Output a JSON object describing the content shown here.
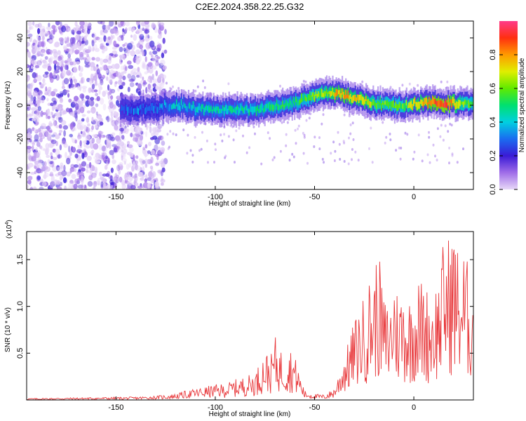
{
  "title": "C2E2.2024.358.22.25.G32",
  "chart_data": [
    {
      "type": "heatmap",
      "xlabel": "Height of straight line (km)",
      "ylabel": "Frequency (Hz)",
      "xlim": [
        -195,
        30
      ],
      "ylim": [
        -50,
        50
      ],
      "x_ticks": [
        -150,
        -100,
        -50,
        0
      ],
      "y_ticks": [
        -40,
        -20,
        0,
        20,
        40
      ],
      "x_tick_labels": [
        "-150",
        "-100",
        "-50",
        "0"
      ],
      "y_tick_labels": [
        "-40",
        "-20",
        "0",
        "20",
        "40"
      ],
      "colorbar": {
        "label": "Normalized spectral amplitude",
        "range": [
          0,
          1
        ],
        "ticks": [
          0.0,
          0.2,
          0.4,
          0.6,
          0.8
        ],
        "tick_labels": [
          "0.0",
          "0.2",
          "0.4",
          "0.6",
          "0.8"
        ]
      },
      "ridge": {
        "name": "",
        "x": [
          -148,
          -140,
          -130,
          -125,
          -120,
          -110,
          -100,
          -90,
          -80,
          -70,
          -60,
          -50,
          -45,
          -40,
          -35,
          -30,
          -25,
          -20,
          -15,
          -10,
          -5,
          0,
          5,
          10,
          15,
          20,
          25,
          30
        ],
        "frequency": [
          -3,
          -2,
          -2,
          0,
          0,
          -2,
          -3,
          -2,
          -3,
          -1,
          2,
          6,
          8,
          7,
          6,
          4,
          3,
          1,
          0,
          0,
          0,
          1,
          1,
          2,
          1,
          1,
          1,
          1
        ],
        "amplitude": [
          0.25,
          0.3,
          0.3,
          0.35,
          0.4,
          0.4,
          0.45,
          0.45,
          0.45,
          0.5,
          0.5,
          0.6,
          0.65,
          0.75,
          0.8,
          0.7,
          0.75,
          0.6,
          0.6,
          0.55,
          0.6,
          0.7,
          0.75,
          0.85,
          0.9,
          0.75,
          0.6,
          0.55
        ]
      },
      "noise_region": {
        "x_range": [
          -195,
          -125
        ],
        "amplitude": "low"
      }
    },
    {
      "type": "line",
      "xlabel": "Height of straight line (km)",
      "ylabel": "SNR (10 * v/v)",
      "y_multiplier_label": "(x10",
      "y_multiplier_exp": "4",
      "y_multiplier_close": ")",
      "xlim": [
        -195,
        30
      ],
      "ylim": [
        0,
        18000
      ],
      "x_ticks": [
        -150,
        -100,
        -50,
        0
      ],
      "y_ticks": [
        5000,
        10000,
        15000
      ],
      "x_tick_labels": [
        "-150",
        "-100",
        "-50",
        "0"
      ],
      "y_tick_labels": [
        "0.5",
        "1.0",
        "1.5"
      ],
      "series": [
        {
          "name": "",
          "color": "#e8383b",
          "x": [
            -195,
            -180,
            -160,
            -140,
            -130,
            -120,
            -115,
            -110,
            -105,
            -100,
            -95,
            -90,
            -85,
            -80,
            -78,
            -75,
            -72,
            -70,
            -68,
            -65,
            -62,
            -60,
            -58,
            -55,
            -50,
            -45,
            -40,
            -38,
            -35,
            -33,
            -30,
            -28,
            -25,
            -23,
            -20,
            -18,
            -15,
            -12,
            -10,
            -8,
            -5,
            -3,
            0,
            3,
            5,
            8,
            10,
            13,
            15,
            18,
            20,
            23,
            25,
            28,
            30
          ],
          "y": [
            150,
            200,
            250,
            300,
            400,
            600,
            900,
            1100,
            1300,
            1500,
            1600,
            2000,
            2300,
            2700,
            3500,
            4800,
            4300,
            6300,
            5200,
            4600,
            5100,
            4300,
            3000,
            900,
            600,
            500,
            1200,
            2500,
            4600,
            5600,
            7800,
            8800,
            10200,
            11700,
            12900,
            14800,
            10000,
            9400,
            12800,
            10600,
            11200,
            9800,
            11300,
            12000,
            11500,
            10800,
            11000,
            12500,
            15800,
            16200,
            17100,
            14200,
            14800,
            13100,
            10500
          ]
        }
      ]
    }
  ]
}
